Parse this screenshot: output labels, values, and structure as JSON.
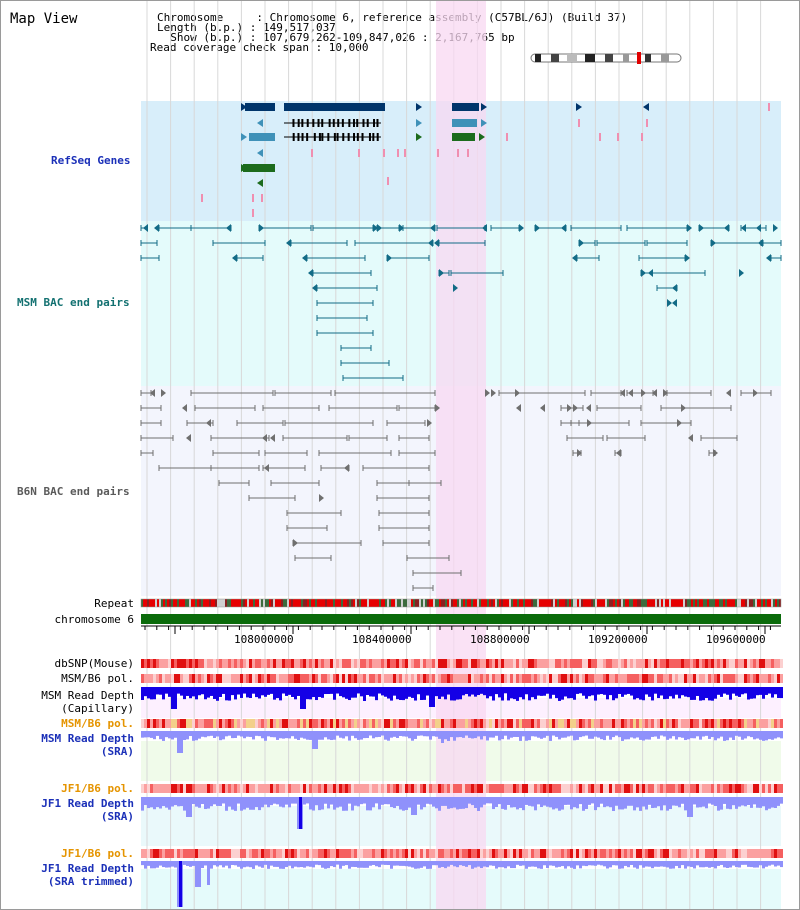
{
  "title": "Map View",
  "info": {
    "lines": [
      "Chromosome     : Chromosome 6, reference assembly (C57BL/6J) (Build 37)",
      "Length (b.p.) : 149,517,037",
      "  Show (b.p.) : 107,679,262-109,847,026 : 2,167,765 bp",
      "Read coverage check span : 10,000"
    ]
  },
  "tracks": {
    "refseq": "RefSeq Genes",
    "msm_bac": "MSM BAC end pairs",
    "b6n_bac": "B6N BAC end pairs",
    "repeat": "Repeat",
    "chromosome": "chromosome 6",
    "dbsnp": "dbSNP(Mouse)",
    "msm_b6_pol": "MSM/B6 pol.",
    "msm_read_depth_cap": "MSM Read Depth\n(Capillary)",
    "msm_b6_pol2": "MSM/B6 pol.",
    "msm_read_depth_sra": "MSM Read Depth\n(SRA)",
    "jf1_b6_pol": "JF1/B6 pol.",
    "jf1_read_depth_sra": "JF1 Read Depth\n(SRA)",
    "jf1_b6_pol2": "JF1/B6 pol.",
    "jf1_read_depth_trimmed": "JF1 Read Depth\n(SRA trimmed)"
  },
  "axis": {
    "ticks": [
      "108000000",
      "108400000",
      "108800000",
      "109200000",
      "109600000"
    ]
  },
  "colors": {
    "refseq_bg": "#d8eefa",
    "msm_bg": "#e4fbfb",
    "b6n_bg": "#f3f5fd",
    "highlight": "#f8d8f2",
    "gene_dark": "#00356b",
    "gene_mid": "#3f91b8",
    "gene_green": "#1c6b1c",
    "msm_bac": "#126b86",
    "b6n_bac": "#6f6f6f",
    "chromosome": "#0b6b0b",
    "label_blue": "#1b30b8",
    "label_teal": "#137171",
    "label_orange": "#e59400",
    "depth_dark": "#1400e6",
    "depth_light": "#8f91fb"
  }
}
